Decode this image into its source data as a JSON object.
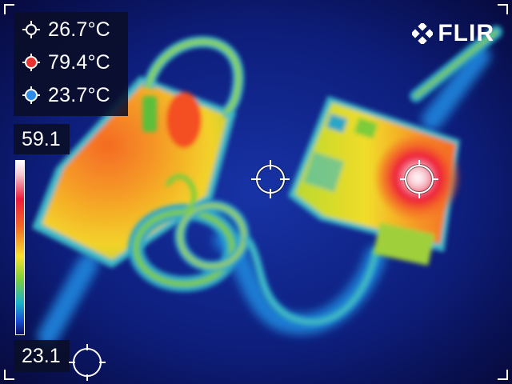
{
  "readouts": [
    {
      "value": "26.7°C",
      "marker": "center-spot",
      "color": "#ffffff"
    },
    {
      "value": "79.4°C",
      "marker": "hot-spot",
      "color": "#e8332f"
    },
    {
      "value": "23.7°C",
      "marker": "cold-spot",
      "color": "#2d8ce8"
    }
  ],
  "brand": {
    "name": "FLIR"
  },
  "scale": {
    "max": "59.1",
    "min": "23.1"
  },
  "colors": {
    "panel": "#0a0e28",
    "hot": "#e8332f",
    "cold": "#2d8ce8"
  }
}
